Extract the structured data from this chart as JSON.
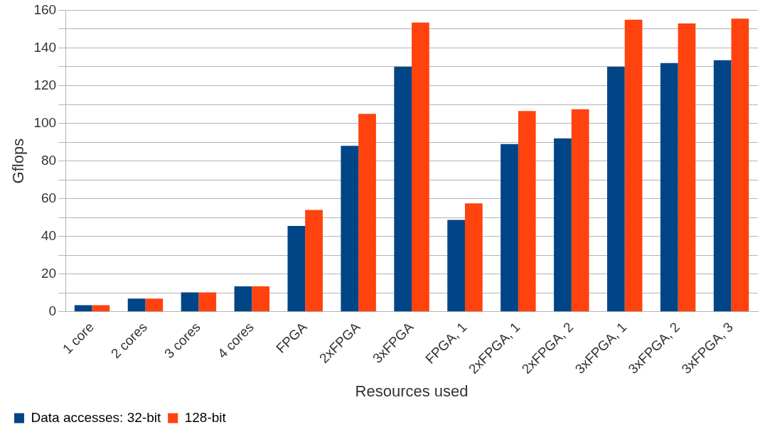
{
  "chart_data": {
    "type": "bar",
    "xlabel": "Resources used",
    "ylabel": "Gflops",
    "categories": [
      "1 core",
      "2 cores",
      "3 cores",
      "4 cores",
      "FPGA",
      "2xFPGA",
      "3xFPGA",
      "FPGA, 1",
      "2xFPGA, 1",
      "2xFPGA, 2",
      "3xFPGA, 1",
      "3xFPGA, 2",
      "3xFPGA, 3"
    ],
    "series": [
      {
        "name": "Data accesses: 32-bit",
        "color": "#004586",
        "values": [
          3.5,
          7,
          10.3,
          13.5,
          45.5,
          88,
          130,
          48.7,
          89,
          92,
          130,
          132,
          133.5
        ]
      },
      {
        "name": "128-bit",
        "color": "#ff420e",
        "values": [
          3.5,
          7,
          10.3,
          13.5,
          54,
          105,
          153.5,
          57.5,
          106.5,
          107.5,
          155,
          153,
          155.5
        ]
      }
    ],
    "ylim": [
      0,
      160
    ],
    "yticks": [
      0,
      {
        "value": 10,
        "label": null
      },
      20,
      {
        "value": 30,
        "label": null
      },
      40,
      {
        "value": 50,
        "label": null
      },
      60,
      {
        "value": 70,
        "label": null
      },
      80,
      {
        "value": 90,
        "label": null
      },
      100,
      {
        "value": 110,
        "label": null
      },
      120,
      {
        "value": 130,
        "label": null
      },
      140,
      {
        "value": 150,
        "label": null
      },
      160
    ],
    "grid": "y",
    "legend": "bottom left"
  }
}
